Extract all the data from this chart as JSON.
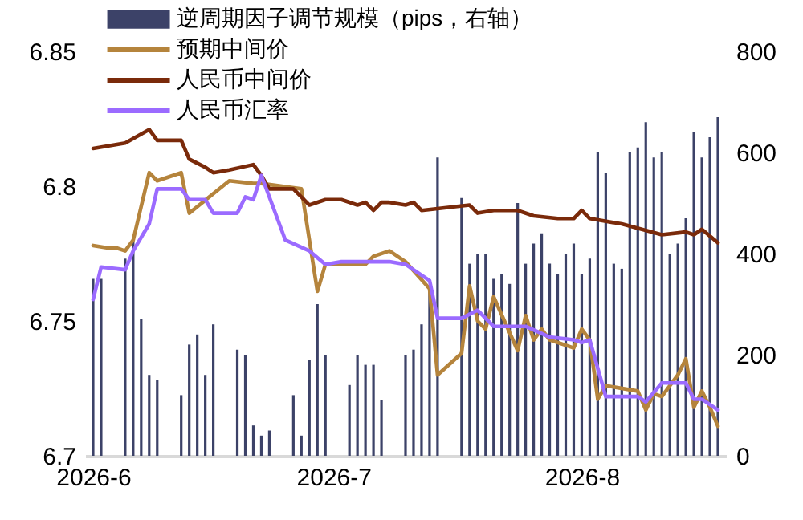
{
  "chart_data": {
    "type": "line",
    "legend": "top left",
    "xlim": [
      "2026-05-31",
      "2026-08-19"
    ],
    "xticks": [
      {
        "value": "2026-06-01",
        "label": "2026-6"
      },
      {
        "value": "2026-07-01",
        "label": "2026-7"
      },
      {
        "value": "2026-08-01",
        "label": "2026-8"
      }
    ],
    "ylim": [
      6.7,
      6.85
    ],
    "yticks": [
      6.7,
      6.75,
      6.8,
      6.85
    ],
    "y2lim": [
      0,
      800
    ],
    "y2ticks": [
      0,
      200,
      400,
      600,
      800
    ],
    "series": [
      {
        "name": "逆周期因子调节规模（pips，右轴）",
        "type": "bar",
        "axis": "y2",
        "color": "#3c4268",
        "x": [
          "2026-06-01",
          "2026-06-02",
          "2026-06-05",
          "2026-06-06",
          "2026-06-07",
          "2026-06-08",
          "2026-06-09",
          "2026-06-12",
          "2026-06-13",
          "2026-06-14",
          "2026-06-15",
          "2026-06-16",
          "2026-06-19",
          "2026-06-20",
          "2026-06-21",
          "2026-06-22",
          "2026-06-23",
          "2026-06-26",
          "2026-06-27",
          "2026-06-28",
          "2026-06-29",
          "2026-06-30",
          "2026-07-03",
          "2026-07-04",
          "2026-07-05",
          "2026-07-06",
          "2026-07-07",
          "2026-07-10",
          "2026-07-11",
          "2026-07-12",
          "2026-07-13",
          "2026-07-14",
          "2026-07-17",
          "2026-07-18",
          "2026-07-19",
          "2026-07-20",
          "2026-07-21",
          "2026-07-22",
          "2026-07-23",
          "2026-07-24",
          "2026-07-25",
          "2026-07-26",
          "2026-07-27",
          "2026-07-28",
          "2026-07-29",
          "2026-07-30",
          "2026-07-31",
          "2026-08-01",
          "2026-08-02",
          "2026-08-03",
          "2026-08-04",
          "2026-08-05",
          "2026-08-06",
          "2026-08-07",
          "2026-08-08",
          "2026-08-09",
          "2026-08-10",
          "2026-08-11",
          "2026-08-12",
          "2026-08-13",
          "2026-08-14",
          "2026-08-15",
          "2026-08-16",
          "2026-08-17",
          "2026-08-18"
        ],
        "values": [
          350,
          350,
          390,
          430,
          270,
          160,
          150,
          120,
          220,
          240,
          160,
          260,
          210,
          200,
          60,
          40,
          50,
          120,
          40,
          190,
          300,
          200,
          140,
          200,
          180,
          180,
          110,
          200,
          210,
          260,
          330,
          590,
          510,
          380,
          400,
          400,
          350,
          360,
          340,
          500,
          380,
          420,
          440,
          380,
          360,
          400,
          420,
          360,
          390,
          600,
          560,
          380,
          370,
          600,
          610,
          660,
          590,
          600,
          400,
          420,
          470,
          640,
          590,
          630,
          670
        ]
      },
      {
        "name": "预期中间价",
        "type": "line",
        "color": "#b5843c",
        "x": [
          "2026-06-01",
          "2026-06-03",
          "2026-06-04",
          "2026-06-05",
          "2026-06-06",
          "2026-06-08",
          "2026-06-09",
          "2026-06-12",
          "2026-06-13",
          "2026-06-18",
          "2026-06-21",
          "2026-06-22",
          "2026-06-27",
          "2026-06-29",
          "2026-06-30",
          "2026-07-05",
          "2026-07-06",
          "2026-07-08",
          "2026-07-10",
          "2026-07-13",
          "2026-07-14",
          "2026-07-17",
          "2026-07-18",
          "2026-07-19",
          "2026-07-20",
          "2026-07-21",
          "2026-07-24",
          "2026-07-25",
          "2026-07-26",
          "2026-07-27",
          "2026-07-28",
          "2026-07-31",
          "2026-08-01",
          "2026-08-02",
          "2026-08-03",
          "2026-08-04",
          "2026-08-08",
          "2026-08-09",
          "2026-08-10",
          "2026-08-11",
          "2026-08-13",
          "2026-08-14",
          "2026-08-15",
          "2026-08-16",
          "2026-08-17",
          "2026-08-18"
        ],
        "values": [
          6.778,
          6.777,
          6.777,
          6.776,
          6.78,
          6.805,
          6.802,
          6.805,
          6.79,
          6.802,
          6.801,
          6.801,
          6.799,
          6.761,
          6.771,
          6.771,
          6.774,
          6.776,
          6.772,
          6.762,
          6.73,
          6.738,
          6.763,
          6.75,
          6.747,
          6.759,
          6.739,
          6.752,
          6.743,
          6.747,
          6.743,
          6.74,
          6.747,
          6.743,
          6.721,
          6.726,
          6.724,
          6.717,
          6.723,
          6.722,
          6.73,
          6.736,
          6.718,
          6.724,
          6.718,
          6.711
        ]
      },
      {
        "name": "人民币中间价",
        "type": "line",
        "color": "#7a2a0a",
        "x": [
          "2026-06-01",
          "2026-06-05",
          "2026-06-08",
          "2026-06-09",
          "2026-06-12",
          "2026-06-13",
          "2026-06-15",
          "2026-06-16",
          "2026-06-18",
          "2026-06-21",
          "2026-06-22",
          "2026-06-23",
          "2026-06-26",
          "2026-06-28",
          "2026-06-30",
          "2026-07-02",
          "2026-07-04",
          "2026-07-05",
          "2026-07-06",
          "2026-07-07",
          "2026-07-08",
          "2026-07-10",
          "2026-07-11",
          "2026-07-12",
          "2026-07-18",
          "2026-07-19",
          "2026-07-21",
          "2026-07-24",
          "2026-07-26",
          "2026-07-29",
          "2026-07-31",
          "2026-08-01",
          "2026-08-02",
          "2026-08-06",
          "2026-08-11",
          "2026-08-14",
          "2026-08-15",
          "2026-08-16",
          "2026-08-18"
        ],
        "values": [
          6.814,
          6.816,
          6.821,
          6.817,
          6.817,
          6.81,
          6.807,
          6.805,
          6.806,
          6.808,
          6.804,
          6.799,
          6.799,
          6.793,
          6.795,
          6.795,
          6.793,
          6.794,
          6.791,
          6.794,
          6.794,
          6.793,
          6.794,
          6.791,
          6.793,
          6.79,
          6.791,
          6.791,
          6.789,
          6.788,
          6.788,
          6.791,
          6.788,
          6.786,
          6.782,
          6.783,
          6.782,
          6.784,
          6.779
        ]
      },
      {
        "name": "人民币汇率",
        "type": "line",
        "color": "#9b6bff",
        "x": [
          "2026-06-01",
          "2026-06-02",
          "2026-06-05",
          "2026-06-06",
          "2026-06-08",
          "2026-06-09",
          "2026-06-12",
          "2026-06-13",
          "2026-06-15",
          "2026-06-16",
          "2026-06-19",
          "2026-06-20",
          "2026-06-21",
          "2026-06-22",
          "2026-06-25",
          "2026-06-28",
          "2026-06-30",
          "2026-07-02",
          "2026-07-06",
          "2026-07-08",
          "2026-07-10",
          "2026-07-13",
          "2026-07-14",
          "2026-07-17",
          "2026-07-19",
          "2026-07-21",
          "2026-07-25",
          "2026-07-28",
          "2026-07-31",
          "2026-08-01",
          "2026-08-02",
          "2026-08-04",
          "2026-08-08",
          "2026-08-09",
          "2026-08-11",
          "2026-08-14",
          "2026-08-15",
          "2026-08-16",
          "2026-08-18"
        ],
        "values": [
          6.758,
          6.77,
          6.769,
          6.776,
          6.786,
          6.799,
          6.799,
          6.795,
          6.795,
          6.79,
          6.79,
          6.796,
          6.795,
          6.804,
          6.78,
          6.776,
          6.771,
          6.772,
          6.772,
          6.772,
          6.771,
          6.765,
          6.751,
          6.751,
          6.754,
          6.748,
          6.748,
          6.744,
          6.743,
          6.742,
          6.743,
          6.722,
          6.722,
          6.72,
          6.727,
          6.727,
          6.721,
          6.721,
          6.717
        ]
      }
    ]
  }
}
